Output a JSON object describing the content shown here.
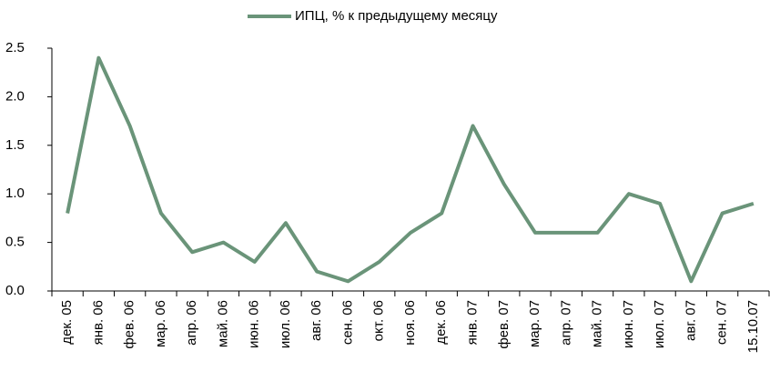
{
  "chart_data": {
    "type": "line",
    "categories": [
      "дек. 05",
      "янв. 06",
      "фев. 06",
      "мар. 06",
      "апр. 06",
      "май. 06",
      "июн. 06",
      "июл. 06",
      "авг. 06",
      "сен. 06",
      "окт. 06",
      "ноя. 06",
      "дек. 06",
      "янв. 07",
      "фев. 07",
      "мар. 07",
      "апр. 07",
      "май. 07",
      "июн. 07",
      "июл. 07",
      "авг. 07",
      "сен. 07",
      "15.10.07"
    ],
    "series": [
      {
        "name": "ИПЦ, % к предыдущему  месяцу",
        "color": "#6a9479",
        "values": [
          0.8,
          2.4,
          1.7,
          0.8,
          0.4,
          0.5,
          0.3,
          0.7,
          0.2,
          0.1,
          0.3,
          0.6,
          0.8,
          1.7,
          1.1,
          0.6,
          0.6,
          0.6,
          1.0,
          0.9,
          0.1,
          0.8,
          0.9
        ]
      }
    ],
    "ylim": [
      0,
      2.5
    ],
    "yticks": [
      {
        "value": 0,
        "label": "0.0"
      },
      0.5,
      {
        "value": 1,
        "label": "1.0"
      },
      1.5,
      {
        "value": 2,
        "label": "2.0"
      },
      2.5
    ],
    "grid": false,
    "legend": "top"
  }
}
